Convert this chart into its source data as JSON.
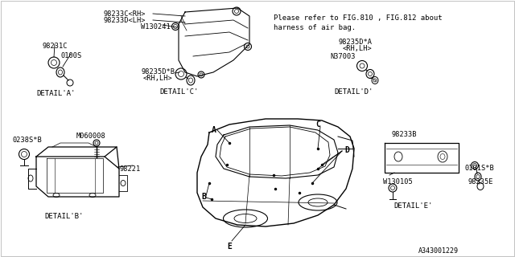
{
  "bg_color": "#ffffff",
  "text_color": "#000000",
  "line_color": "#000000",
  "diagram_number": "A343001229",
  "note_line1": "Please refer to FIG.810 , FIG.812 about",
  "note_line2": "harness of air bag.",
  "font_size": 6.5,
  "fig_w": 6.4,
  "fig_h": 3.2,
  "dpi": 100
}
